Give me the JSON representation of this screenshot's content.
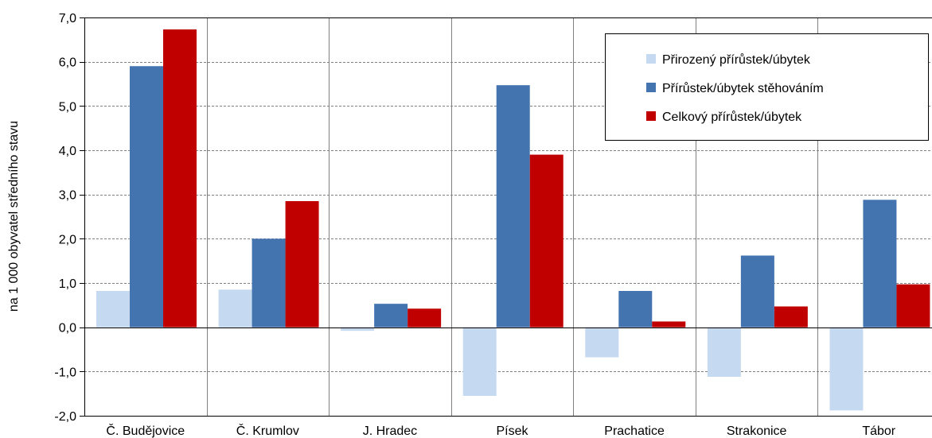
{
  "chart_data": {
    "type": "bar",
    "ylabel": "na 1 000 obyvatel středního stavu",
    "ylim": [
      -2.0,
      7.0
    ],
    "yticks": [
      -2.0,
      -1.0,
      0.0,
      1.0,
      2.0,
      3.0,
      4.0,
      5.0,
      6.0,
      7.0
    ],
    "ytick_labels": [
      "-2,0",
      "-1,0",
      "0,0",
      "1,0",
      "2,0",
      "3,0",
      "4,0",
      "5,0",
      "6,0",
      "7,0"
    ],
    "categories": [
      "Č. Budějovice",
      "Č. Krumlov",
      "J. Hradec",
      "Písek",
      "Prachatice",
      "Strakonice",
      "Tábor"
    ],
    "series": [
      {
        "name": "Přirozený přírůstek/úbytek",
        "color": "#c5d9f1",
        "values": [
          0.82,
          0.85,
          -0.08,
          -1.55,
          -0.68,
          -1.12,
          -1.88
        ]
      },
      {
        "name": "Přírůstek/úbytek stěhováním",
        "color": "#4374b0",
        "values": [
          5.9,
          2.0,
          0.53,
          5.47,
          0.82,
          1.62,
          2.88
        ]
      },
      {
        "name": "Celkový přírůstek/úbytek",
        "color": "#c00000",
        "values": [
          6.73,
          2.85,
          0.42,
          3.9,
          0.13,
          0.47,
          0.97
        ]
      }
    ],
    "grid": true,
    "legend_position": "top-right"
  }
}
